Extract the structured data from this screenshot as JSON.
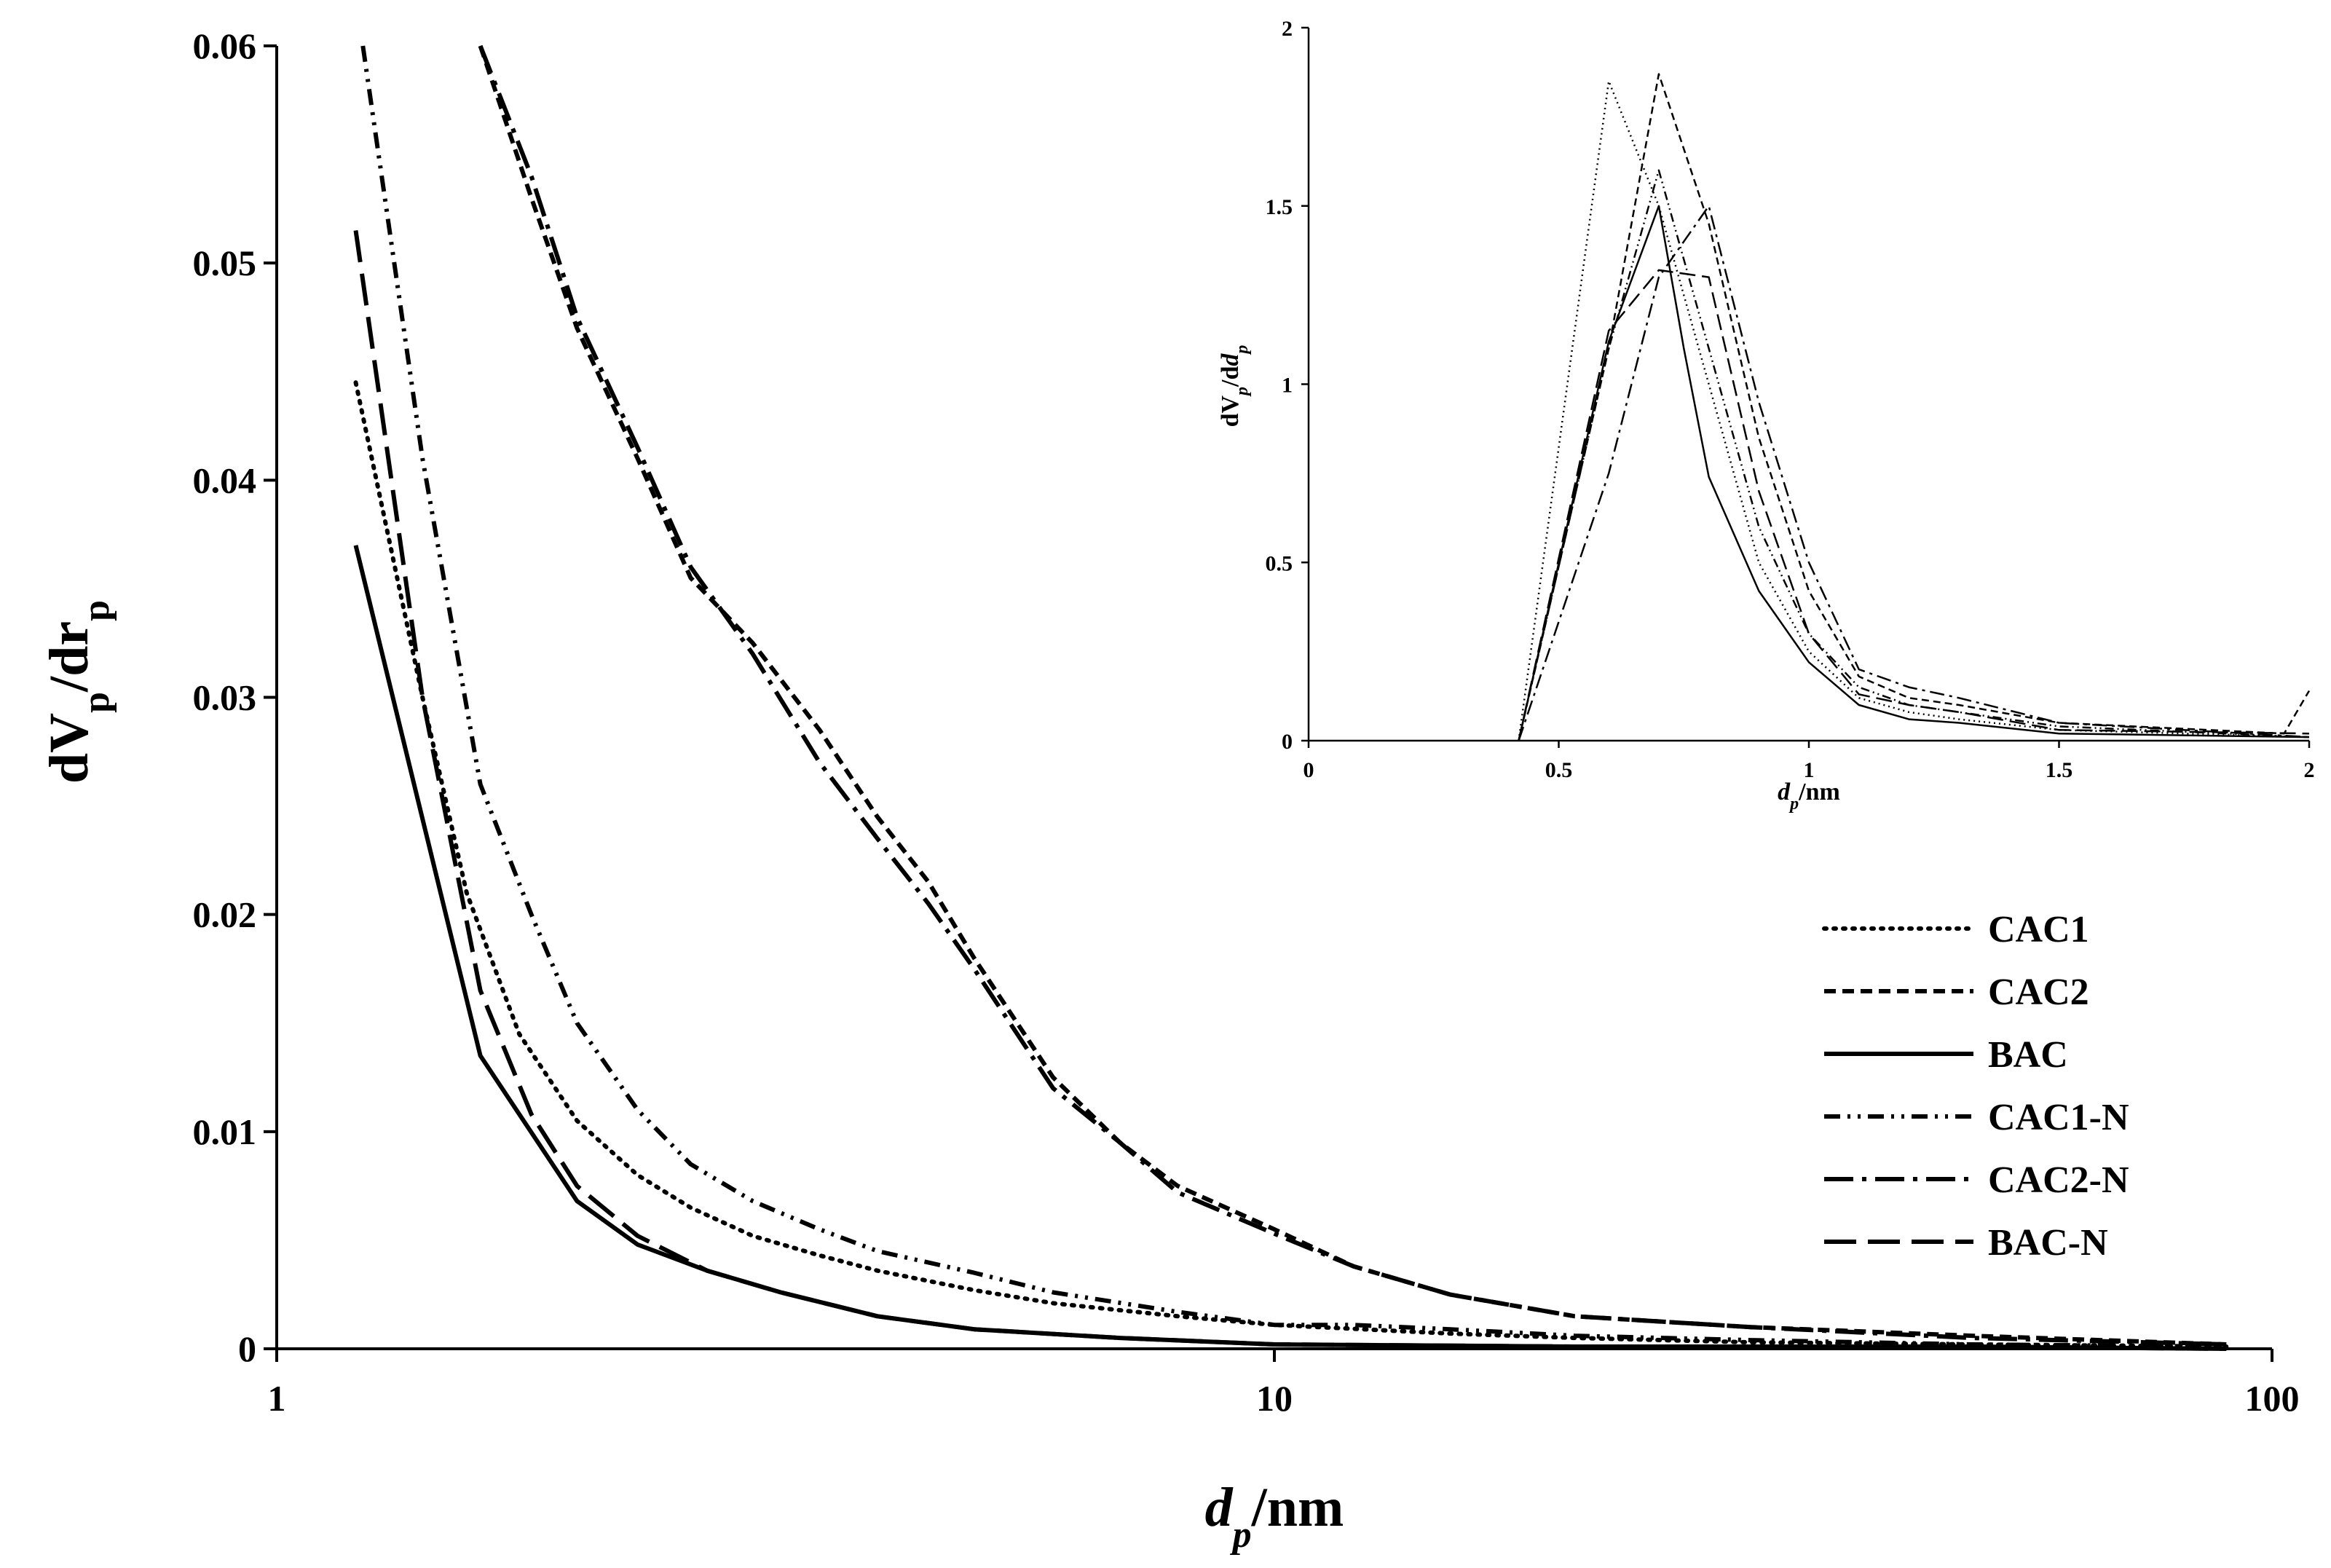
{
  "chart_data": [
    {
      "type": "line",
      "xlabel": "d_p/nm",
      "ylabel": "dV_p/dr_p",
      "xscale": "log",
      "xlim": [
        1,
        100
      ],
      "ylim": [
        0,
        0.06
      ],
      "x_ticks": [
        "1",
        "10",
        "100"
      ],
      "y_ticks": [
        "0",
        "0.01",
        "0.02",
        "0.03",
        "0.04",
        "0.05",
        "0.06"
      ],
      "grid": false,
      "legend_position": "right",
      "series": [
        {
          "name": "CAC1",
          "dash": "dotted",
          "x": [
            1.2,
            1.4,
            1.55,
            1.75,
            2.0,
            2.3,
            2.6,
            3.0,
            3.5,
            4.0,
            5.0,
            6.0,
            8.0,
            10.0,
            15.0,
            20.0,
            30.0,
            50.0,
            90.0
          ],
          "y": [
            0.0445,
            0.03,
            0.021,
            0.0145,
            0.0105,
            0.008,
            0.0065,
            0.0052,
            0.0043,
            0.0036,
            0.0027,
            0.0021,
            0.0015,
            0.0011,
            0.0007,
            0.0005,
            0.0003,
            0.0002,
            0.0001
          ]
        },
        {
          "name": "CAC2",
          "dash": "short-dash",
          "x": [
            1.6,
            1.8,
            2.0,
            2.3,
            2.6,
            3.0,
            3.5,
            4.0,
            4.5,
            5.0,
            6.0,
            7.0,
            8.0,
            10.0,
            12.0,
            15.0,
            20.0,
            30.0,
            50.0,
            90.0
          ],
          "y": [
            0.06,
            0.053,
            0.047,
            0.041,
            0.0355,
            0.0325,
            0.0285,
            0.0245,
            0.0215,
            0.018,
            0.0125,
            0.0095,
            0.0075,
            0.0055,
            0.0038,
            0.0025,
            0.0015,
            0.001,
            0.0006,
            0.0002
          ]
        },
        {
          "name": "BAC",
          "dash": "solid",
          "x": [
            1.2,
            1.6,
            2.0,
            2.3,
            2.7,
            3.2,
            4.0,
            5.0,
            7.0,
            10.0,
            20.0,
            50.0,
            90.0
          ],
          "y": [
            0.037,
            0.0135,
            0.0068,
            0.0048,
            0.0036,
            0.0026,
            0.0015,
            0.0009,
            0.0005,
            0.0002,
            0.0001,
            0.0001,
            0.0
          ]
        },
        {
          "name": "CAC1-N",
          "dash": "dash-dot-dot",
          "x": [
            1.22,
            1.4,
            1.6,
            1.8,
            2.0,
            2.3,
            2.6,
            3.0,
            3.5,
            4.0,
            5.0,
            6.0,
            8.0,
            10.0,
            12.0,
            15.0,
            20.0,
            30.0,
            50.0,
            90.0
          ],
          "y": [
            0.06,
            0.041,
            0.026,
            0.02,
            0.015,
            0.011,
            0.0085,
            0.0068,
            0.0055,
            0.0045,
            0.0035,
            0.0026,
            0.0017,
            0.0011,
            0.0011,
            0.0009,
            0.0006,
            0.0004,
            0.0002,
            0.0001
          ]
        },
        {
          "name": "CAC2-N",
          "dash": "long-dash-dot",
          "x": [
            1.6,
            1.8,
            2.0,
            2.3,
            2.6,
            3.0,
            3.5,
            4.0,
            4.5,
            5.0,
            6.0,
            7.0,
            8.0,
            10.0,
            12.0,
            15.0,
            20.0,
            30.0,
            50.0,
            90.0
          ],
          "y": [
            0.06,
            0.054,
            0.0475,
            0.0415,
            0.036,
            0.032,
            0.027,
            0.0235,
            0.0205,
            0.0175,
            0.012,
            0.0095,
            0.0072,
            0.0053,
            0.0038,
            0.0025,
            0.0015,
            0.001,
            0.0005,
            0.0002
          ]
        },
        {
          "name": "BAC-N",
          "dash": "long-dash",
          "x": [
            1.2,
            1.4,
            1.6,
            1.8,
            2.0,
            2.3,
            2.7,
            3.2,
            4.0,
            5.0,
            7.0,
            10.0,
            20.0,
            50.0,
            90.0
          ],
          "y": [
            0.0515,
            0.03,
            0.0165,
            0.0108,
            0.0075,
            0.0052,
            0.0036,
            0.0026,
            0.0015,
            0.0009,
            0.0005,
            0.0002,
            0.0001,
            0.0001,
            0.0
          ]
        }
      ]
    },
    {
      "type": "line",
      "xlabel": "d_p/nm",
      "ylabel": "dV_p/dd_p",
      "xlim": [
        0,
        2
      ],
      "ylim": [
        0,
        2
      ],
      "x_ticks": [
        "0",
        "0.5",
        "1",
        "1.5",
        "2"
      ],
      "y_ticks": [
        "0",
        "0.5",
        "1",
        "1.5",
        "2"
      ],
      "grid": false,
      "series": [
        {
          "name": "CAC1",
          "dash": "dotted",
          "x": [
            0.42,
            0.6,
            0.7,
            0.8,
            0.9,
            1.0,
            1.1,
            1.2,
            1.3,
            1.5,
            2.0
          ],
          "y": [
            0.0,
            1.85,
            1.5,
            1.0,
            0.5,
            0.25,
            0.12,
            0.08,
            0.06,
            0.03,
            0.01
          ]
        },
        {
          "name": "CAC2",
          "dash": "short-dash",
          "x": [
            0.42,
            0.6,
            0.7,
            0.8,
            0.9,
            1.0,
            1.1,
            1.2,
            1.3,
            1.5,
            1.95,
            2.0
          ],
          "y": [
            0.0,
            1.1,
            1.87,
            1.45,
            0.85,
            0.42,
            0.18,
            0.12,
            0.1,
            0.05,
            0.02,
            0.14
          ]
        },
        {
          "name": "BAC",
          "dash": "solid",
          "x": [
            0.42,
            0.6,
            0.7,
            0.75,
            0.8,
            0.9,
            1.0,
            1.1,
            1.2,
            1.3,
            1.5,
            2.0
          ],
          "y": [
            0.0,
            1.12,
            1.5,
            1.1,
            0.74,
            0.42,
            0.22,
            0.1,
            0.06,
            0.05,
            0.02,
            0.01
          ]
        },
        {
          "name": "CAC1-N",
          "dash": "dash-dot-dot",
          "x": [
            0.42,
            0.6,
            0.7,
            0.8,
            0.9,
            1.0,
            1.1,
            1.2,
            1.3,
            1.5,
            2.0
          ],
          "y": [
            0.0,
            1.1,
            1.6,
            1.1,
            0.6,
            0.3,
            0.15,
            0.1,
            0.08,
            0.04,
            0.01
          ]
        },
        {
          "name": "CAC2-N",
          "dash": "long-dash-dot",
          "x": [
            0.42,
            0.6,
            0.7,
            0.8,
            0.9,
            1.0,
            1.1,
            1.2,
            1.3,
            1.5,
            2.0
          ],
          "y": [
            0.0,
            0.75,
            1.3,
            1.5,
            0.95,
            0.5,
            0.2,
            0.15,
            0.12,
            0.05,
            0.01
          ]
        },
        {
          "name": "BAC-N",
          "dash": "long-dash",
          "x": [
            0.42,
            0.6,
            0.7,
            0.8,
            0.9,
            1.0,
            1.1,
            1.2,
            1.3,
            1.5,
            2.0
          ],
          "y": [
            0.0,
            1.15,
            1.32,
            1.3,
            0.7,
            0.3,
            0.13,
            0.1,
            0.08,
            0.03,
            0.02
          ]
        }
      ]
    }
  ]
}
